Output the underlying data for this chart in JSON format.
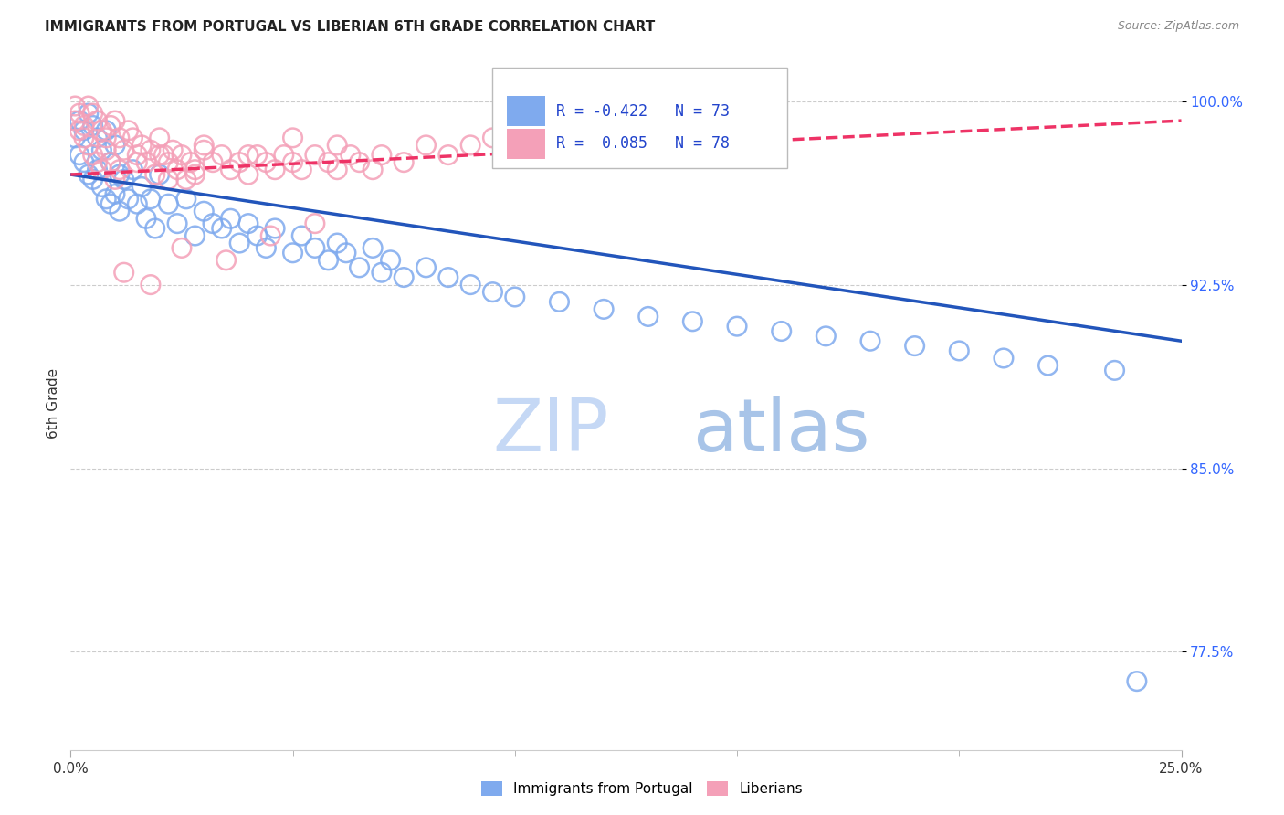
{
  "title": "IMMIGRANTS FROM PORTUGAL VS LIBERIAN 6TH GRADE CORRELATION CHART",
  "source": "Source: ZipAtlas.com",
  "ylabel": "6th Grade",
  "xlim": [
    0.0,
    0.25
  ],
  "ylim": [
    0.735,
    1.018
  ],
  "yticks": [
    0.775,
    0.85,
    0.925,
    1.0
  ],
  "ytick_labels": [
    "77.5%",
    "85.0%",
    "92.5%",
    "100.0%"
  ],
  "xtick_left": "0.0%",
  "xtick_right": "25.0%",
  "legend_blue_label": "Immigrants from Portugal",
  "legend_pink_label": "Liberians",
  "R_blue": "-0.422",
  "N_blue": "73",
  "R_pink": "0.085",
  "N_pink": "78",
  "blue_color": "#7faaee",
  "pink_color": "#f4a0b8",
  "trendline_blue_color": "#2255bb",
  "trendline_pink_color": "#ee3366",
  "background_color": "#ffffff",
  "grid_color": "#cccccc",
  "watermark_zip_color": "#c8ddf8",
  "watermark_atlas_color": "#b0cce8",
  "blue_scatter_x": [
    0.001,
    0.002,
    0.002,
    0.003,
    0.003,
    0.004,
    0.004,
    0.005,
    0.005,
    0.006,
    0.006,
    0.007,
    0.007,
    0.008,
    0.008,
    0.009,
    0.009,
    0.01,
    0.01,
    0.011,
    0.011,
    0.012,
    0.013,
    0.014,
    0.015,
    0.016,
    0.017,
    0.018,
    0.019,
    0.02,
    0.022,
    0.024,
    0.026,
    0.028,
    0.03,
    0.032,
    0.034,
    0.036,
    0.038,
    0.04,
    0.042,
    0.044,
    0.046,
    0.05,
    0.052,
    0.055,
    0.058,
    0.06,
    0.062,
    0.065,
    0.068,
    0.07,
    0.072,
    0.075,
    0.08,
    0.085,
    0.09,
    0.095,
    0.1,
    0.11,
    0.12,
    0.13,
    0.14,
    0.15,
    0.16,
    0.17,
    0.18,
    0.19,
    0.2,
    0.21,
    0.22,
    0.235,
    0.24
  ],
  "blue_scatter_y": [
    0.985,
    0.992,
    0.978,
    0.988,
    0.975,
    0.995,
    0.97,
    0.99,
    0.968,
    0.985,
    0.972,
    0.98,
    0.965,
    0.988,
    0.96,
    0.975,
    0.958,
    0.982,
    0.962,
    0.97,
    0.955,
    0.968,
    0.96,
    0.972,
    0.958,
    0.965,
    0.952,
    0.96,
    0.948,
    0.97,
    0.958,
    0.95,
    0.96,
    0.945,
    0.955,
    0.95,
    0.948,
    0.952,
    0.942,
    0.95,
    0.945,
    0.94,
    0.948,
    0.938,
    0.945,
    0.94,
    0.935,
    0.942,
    0.938,
    0.932,
    0.94,
    0.93,
    0.935,
    0.928,
    0.932,
    0.928,
    0.925,
    0.922,
    0.92,
    0.918,
    0.915,
    0.912,
    0.91,
    0.908,
    0.906,
    0.904,
    0.902,
    0.9,
    0.898,
    0.895,
    0.892,
    0.89,
    0.763
  ],
  "pink_scatter_x": [
    0.001,
    0.001,
    0.002,
    0.002,
    0.003,
    0.003,
    0.004,
    0.004,
    0.005,
    0.005,
    0.006,
    0.006,
    0.007,
    0.007,
    0.008,
    0.008,
    0.009,
    0.009,
    0.01,
    0.01,
    0.011,
    0.011,
    0.012,
    0.013,
    0.014,
    0.015,
    0.016,
    0.017,
    0.018,
    0.019,
    0.02,
    0.021,
    0.022,
    0.023,
    0.024,
    0.025,
    0.026,
    0.027,
    0.028,
    0.03,
    0.032,
    0.034,
    0.036,
    0.038,
    0.04,
    0.042,
    0.044,
    0.046,
    0.048,
    0.05,
    0.052,
    0.055,
    0.058,
    0.06,
    0.063,
    0.065,
    0.068,
    0.07,
    0.075,
    0.08,
    0.085,
    0.09,
    0.095,
    0.1,
    0.012,
    0.018,
    0.025,
    0.035,
    0.045,
    0.055,
    0.015,
    0.02,
    0.03,
    0.04,
    0.05,
    0.06,
    0.022,
    0.028
  ],
  "pink_scatter_y": [
    0.998,
    0.992,
    0.995,
    0.988,
    0.99,
    0.985,
    0.998,
    0.982,
    0.995,
    0.978,
    0.992,
    0.975,
    0.988,
    0.972,
    0.985,
    0.98,
    0.99,
    0.975,
    0.992,
    0.968,
    0.985,
    0.972,
    0.98,
    0.988,
    0.985,
    0.978,
    0.982,
    0.975,
    0.98,
    0.97,
    0.985,
    0.978,
    0.975,
    0.98,
    0.972,
    0.978,
    0.968,
    0.975,
    0.97,
    0.98,
    0.975,
    0.978,
    0.972,
    0.975,
    0.97,
    0.978,
    0.975,
    0.972,
    0.978,
    0.975,
    0.972,
    0.978,
    0.975,
    0.972,
    0.978,
    0.975,
    0.972,
    0.978,
    0.975,
    0.982,
    0.978,
    0.982,
    0.985,
    0.988,
    0.93,
    0.925,
    0.94,
    0.935,
    0.945,
    0.95,
    0.975,
    0.978,
    0.982,
    0.978,
    0.985,
    0.982,
    0.968,
    0.972
  ]
}
